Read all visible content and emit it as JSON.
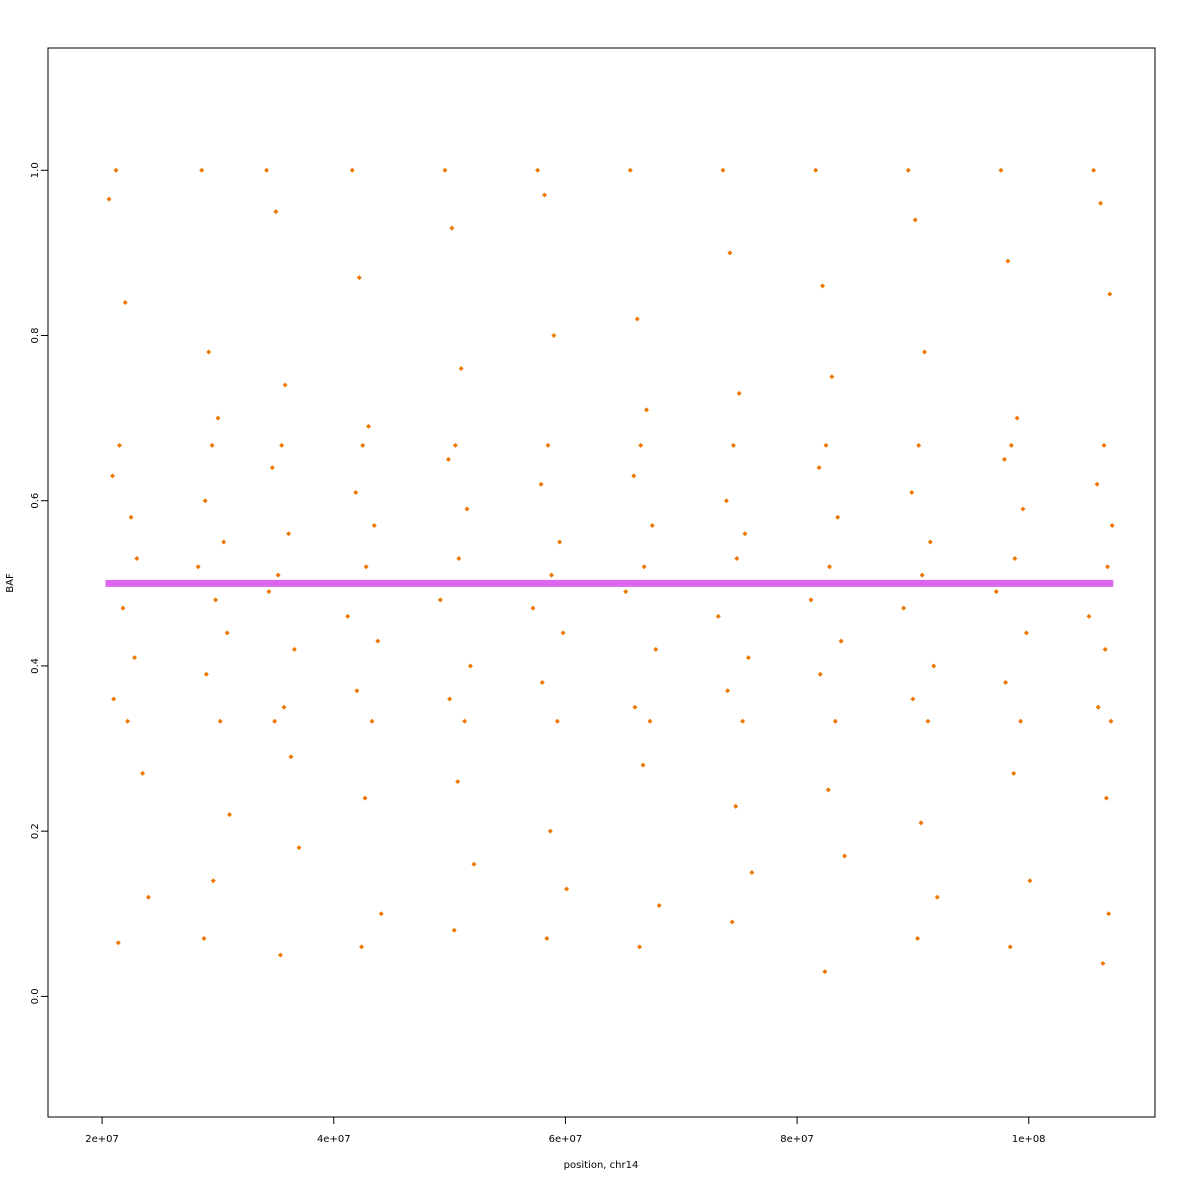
{
  "chart_data": {
    "type": "scatter",
    "x_label": "position, chr14",
    "y_label": "BAF",
    "xlim": [
      15330000.0,
      110900000.0
    ],
    "ylim": [
      -0.146,
      1.148
    ],
    "xticks": [
      {
        "value": 20000000.0,
        "label": "2e+07"
      },
      {
        "value": 40000000.0,
        "label": "4e+07"
      },
      {
        "value": 60000000.0,
        "label": "6e+07"
      },
      {
        "value": 80000000.0,
        "label": "8e+07"
      },
      {
        "value": 100000000.0,
        "label": "1e+08"
      }
    ],
    "yticks": [
      {
        "value": 0,
        "label": "0.0"
      },
      0.2,
      0.4,
      0.6,
      0.8,
      {
        "value": 1,
        "label": "1.0"
      }
    ],
    "series": [
      {
        "color": "#ee7700",
        "x": [
          20600000.0,
          21200000.0,
          22000000.0,
          21500000.0,
          20900000.0,
          22500000.0,
          23000000.0,
          21800000.0,
          22800000.0,
          21000000.0,
          22200000.0,
          23500000.0,
          24000000.0,
          21400000.0,
          28600000.0,
          29200000.0,
          30000000.0,
          29500000.0,
          28900000.0,
          30500000.0,
          28300000.0,
          29800000.0,
          30800000.0,
          29000000.0,
          30200000.0,
          31000000.0,
          29600000.0,
          28800000.0,
          34200000.0,
          35000000.0,
          35800000.0,
          35500000.0,
          34700000.0,
          36100000.0,
          35200000.0,
          34400000.0,
          36600000.0,
          35700000.0,
          34900000.0,
          36300000.0,
          37000000.0,
          35400000.0,
          41600000.0,
          42200000.0,
          43000000.0,
          42500000.0,
          41900000.0,
          43500000.0,
          42800000.0,
          41200000.0,
          43800000.0,
          42000000.0,
          43300000.0,
          42700000.0,
          44100000.0,
          42400000.0,
          49600000.0,
          50200000.0,
          51000000.0,
          50500000.0,
          49900000.0,
          51500000.0,
          50800000.0,
          49200000.0,
          51800000.0,
          50000000.0,
          51300000.0,
          50700000.0,
          52100000.0,
          50400000.0,
          57600000.0,
          58200000.0,
          59000000.0,
          58500000.0,
          57900000.0,
          59500000.0,
          58800000.0,
          57200000.0,
          59800000.0,
          58000000.0,
          59300000.0,
          58700000.0,
          60100000.0,
          58400000.0,
          65600000.0,
          66200000.0,
          67000000.0,
          66500000.0,
          65900000.0,
          67500000.0,
          66800000.0,
          65200000.0,
          67800000.0,
          66000000.0,
          67300000.0,
          66700000.0,
          68100000.0,
          66400000.0,
          73600000.0,
          74200000.0,
          75000000.0,
          74500000.0,
          73900000.0,
          75500000.0,
          74800000.0,
          73200000.0,
          75800000.0,
          74000000.0,
          75300000.0,
          74700000.0,
          76100000.0,
          74400000.0,
          81600000.0,
          82200000.0,
          83000000.0,
          82500000.0,
          81900000.0,
          83500000.0,
          82800000.0,
          81200000.0,
          83800000.0,
          82000000.0,
          83300000.0,
          82700000.0,
          84100000.0,
          82400000.0,
          89600000.0,
          90200000.0,
          91000000.0,
          90500000.0,
          89900000.0,
          91500000.0,
          90800000.0,
          89200000.0,
          91800000.0,
          90000000.0,
          91300000.0,
          90700000.0,
          92100000.0,
          90400000.0,
          97600000.0,
          98200000.0,
          99000000.0,
          98500000.0,
          97900000.0,
          99500000.0,
          98800000.0,
          97200000.0,
          99800000.0,
          98000000.0,
          99300000.0,
          98700000.0,
          100100000.0,
          98400000.0,
          105600000.0,
          106200000.0,
          107000000.0,
          106500000.0,
          105900000.0,
          107200000.0,
          106800000.0,
          105200000.0,
          106600000.0,
          106000000.0,
          107100000.0,
          106700000.0,
          106900000.0,
          106400000.0
        ],
        "values": [
          0.965,
          1.0,
          0.84,
          0.667,
          0.63,
          0.58,
          0.53,
          0.47,
          0.41,
          0.36,
          0.333,
          0.27,
          0.12,
          0.065,
          1.0,
          0.78,
          0.7,
          0.667,
          0.6,
          0.55,
          0.52,
          0.48,
          0.44,
          0.39,
          0.333,
          0.22,
          0.14,
          0.07,
          1.0,
          0.95,
          0.74,
          0.667,
          0.64,
          0.56,
          0.51,
          0.49,
          0.42,
          0.35,
          0.333,
          0.29,
          0.18,
          0.05,
          1.0,
          0.87,
          0.69,
          0.667,
          0.61,
          0.57,
          0.52,
          0.46,
          0.43,
          0.37,
          0.333,
          0.24,
          0.1,
          0.06,
          1.0,
          0.93,
          0.76,
          0.667,
          0.65,
          0.59,
          0.53,
          0.48,
          0.4,
          0.36,
          0.333,
          0.26,
          0.16,
          0.08,
          1.0,
          0.97,
          0.8,
          0.667,
          0.62,
          0.55,
          0.51,
          0.47,
          0.44,
          0.38,
          0.333,
          0.2,
          0.13,
          0.07,
          1.0,
          0.82,
          0.71,
          0.667,
          0.63,
          0.57,
          0.52,
          0.49,
          0.42,
          0.35,
          0.333,
          0.28,
          0.11,
          0.06,
          1.0,
          0.9,
          0.73,
          0.667,
          0.6,
          0.56,
          0.53,
          0.46,
          0.41,
          0.37,
          0.333,
          0.23,
          0.15,
          0.09,
          1.0,
          0.86,
          0.75,
          0.667,
          0.64,
          0.58,
          0.52,
          0.48,
          0.43,
          0.39,
          0.333,
          0.25,
          0.17,
          0.03,
          1.0,
          0.94,
          0.78,
          0.667,
          0.61,
          0.55,
          0.51,
          0.47,
          0.4,
          0.36,
          0.333,
          0.21,
          0.12,
          0.07,
          1.0,
          0.89,
          0.7,
          0.667,
          0.65,
          0.59,
          0.53,
          0.49,
          0.44,
          0.38,
          0.333,
          0.27,
          0.14,
          0.06,
          1.0,
          0.96,
          0.85,
          0.667,
          0.62,
          0.57,
          0.52,
          0.46,
          0.42,
          0.35,
          0.333,
          0.24,
          0.1,
          0.04
        ]
      },
      {
        "type": "line",
        "color": "#dd66ee",
        "x": [
          20300000.0,
          107300000.0
        ],
        "values": [
          0.5,
          0.5
        ]
      }
    ]
  }
}
